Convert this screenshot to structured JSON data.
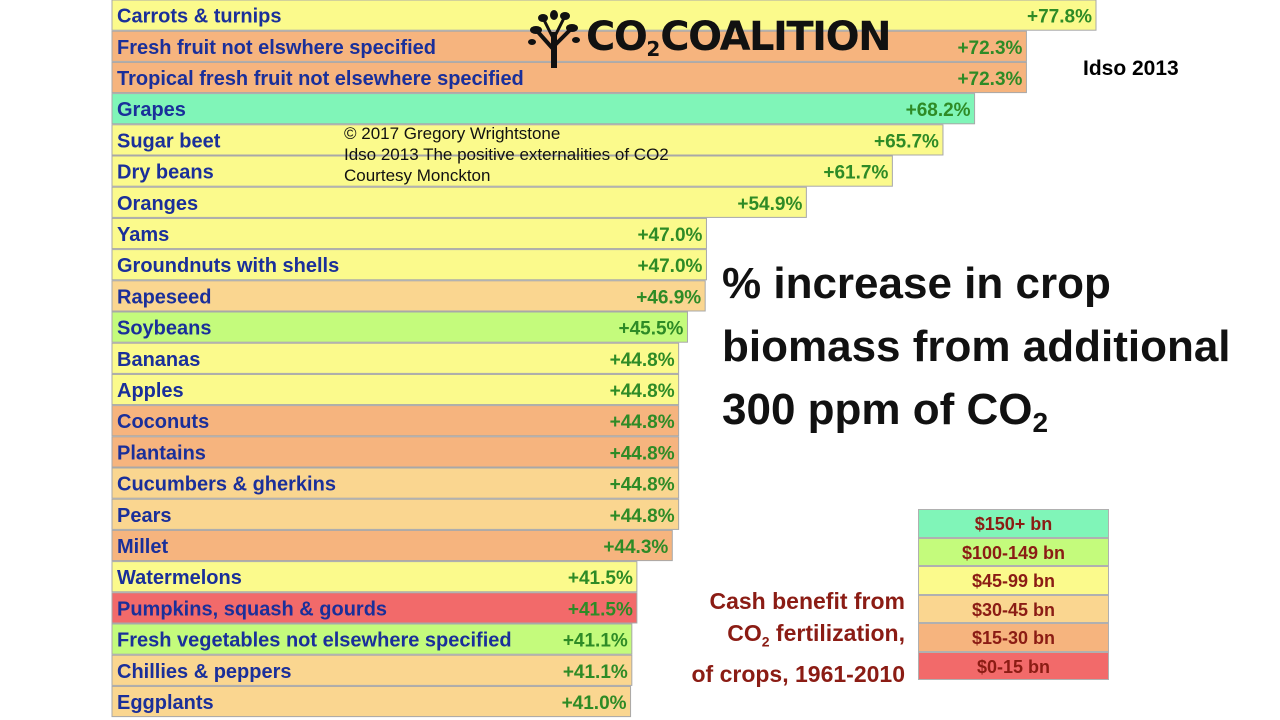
{
  "colors": {
    "teal": "#80f5b8",
    "green": "#c4fb7c",
    "yellow": "#fbfa8c",
    "light_orange": "#fad690",
    "orange": "#f6b47e",
    "red": "#f26a6a",
    "label_text": "#1a2f9a",
    "value_text": "#2e8b26"
  },
  "logo": {
    "text_main": "CO",
    "text_sub": "2",
    "text_rest": "COALITION"
  },
  "source_tag": "Idso 2013",
  "credit": {
    "line1": "© 2017 Gregory Wrightstone",
    "line2": "Idso 2013 The positive externalities of CO2",
    "line3": "Courtesy Monckton"
  },
  "headline": {
    "line1": "% increase in crop",
    "line2": "biomass from additional",
    "line3_main": "300 ppm of CO",
    "line3_sub": "2"
  },
  "cash_label": {
    "line1": "Cash benefit from",
    "line2_main": "CO",
    "line2_sub": "2",
    "line2_rest": " fertilization,",
    "line3": "of crops, 1961-2010"
  },
  "legend": [
    {
      "label": "$150+ bn",
      "color": "teal"
    },
    {
      "label": "$100-149 bn",
      "color": "green"
    },
    {
      "label": "$45-99 bn",
      "color": "yellow"
    },
    {
      "label": "$30-45 bn",
      "color": "light_orange"
    },
    {
      "label": "$15-30 bn",
      "color": "orange"
    },
    {
      "label": "$0-15 bn",
      "color": "red"
    }
  ],
  "chart_data": {
    "type": "bar",
    "orientation": "horizontal",
    "title": "% increase in crop biomass from additional 300 ppm of CO2",
    "xlim": [
      0,
      100
    ],
    "categories": [
      "Carrots & turnips",
      "Fresh fruit not elswhere specified",
      "Tropical fresh fruit not elsewhere specified",
      "Grapes",
      "Sugar beet",
      "Dry beans",
      "Oranges",
      "Yams",
      "Groundnuts with shells",
      "Rapeseed",
      "Soybeans",
      "Bananas",
      "Apples",
      "Coconuts",
      "Plantains",
      "Cucumbers & gherkins",
      "Pears",
      "Millet",
      "Watermelons",
      "Pumpkins, squash & gourds",
      "Fresh vegetables not elsewhere specified",
      "Chillies & peppers",
      "Eggplants"
    ],
    "values": [
      77.8,
      72.3,
      72.3,
      68.2,
      65.7,
      61.7,
      54.9,
      47.0,
      47.0,
      46.9,
      45.5,
      44.8,
      44.8,
      44.8,
      44.8,
      44.8,
      44.8,
      44.3,
      41.5,
      41.5,
      41.1,
      41.1,
      41.0
    ],
    "value_labels": [
      "+77.8%",
      "+72.3%",
      "+72.3%",
      "+68.2%",
      "+65.7%",
      "+61.7%",
      "+54.9%",
      "+47.0%",
      "+47.0%",
      "+46.9%",
      "+45.5%",
      "+44.8%",
      "+44.8%",
      "+44.8%",
      "+44.8%",
      "+44.8%",
      "+44.8%",
      "+44.3%",
      "+41.5%",
      "+41.5%",
      "+41.1%",
      "+41.1%",
      "+41.0%"
    ],
    "color_category": [
      "yellow",
      "orange",
      "orange",
      "teal",
      "yellow",
      "yellow",
      "yellow",
      "yellow",
      "yellow",
      "light_orange",
      "green",
      "yellow",
      "yellow",
      "orange",
      "orange",
      "light_orange",
      "light_orange",
      "orange",
      "yellow",
      "red",
      "green",
      "light_orange",
      "light_orange"
    ]
  }
}
